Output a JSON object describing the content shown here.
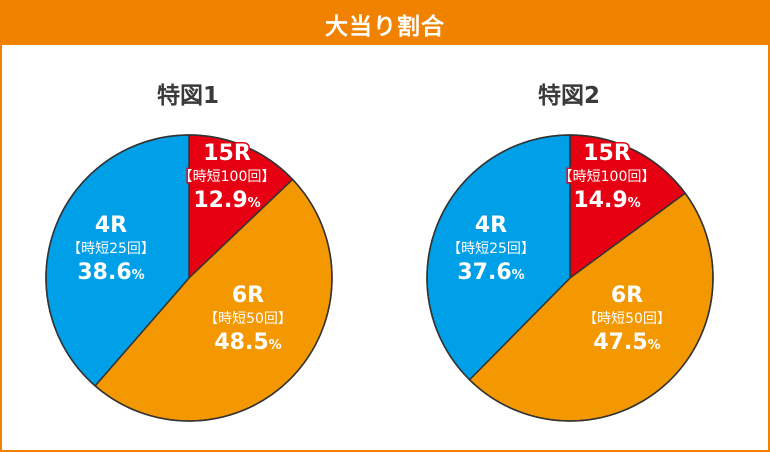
{
  "header": {
    "title": "大当り割合"
  },
  "pct_sign": "%",
  "chart_data": [
    {
      "type": "pie",
      "title": "特図1",
      "slices": [
        {
          "label": "15R",
          "sub": "【時短100回】",
          "value": 12.9,
          "display": "12.9",
          "color": "#e60012"
        },
        {
          "label": "6R",
          "sub": "【時短50回】",
          "value": 48.5,
          "display": "48.5",
          "color": "#f39800"
        },
        {
          "label": "4R",
          "sub": "【時短25回】",
          "value": 38.6,
          "display": "38.6",
          "color": "#00a0e9"
        }
      ]
    },
    {
      "type": "pie",
      "title": "特図2",
      "slices": [
        {
          "label": "15R",
          "sub": "【時短100回】",
          "value": 14.9,
          "display": "14.9",
          "color": "#e60012"
        },
        {
          "label": "6R",
          "sub": "【時短50回】",
          "value": 47.5,
          "display": "47.5",
          "color": "#f39800"
        },
        {
          "label": "4R",
          "sub": "【時短25回】",
          "value": 37.6,
          "display": "37.6",
          "color": "#00a0e9"
        }
      ]
    }
  ]
}
